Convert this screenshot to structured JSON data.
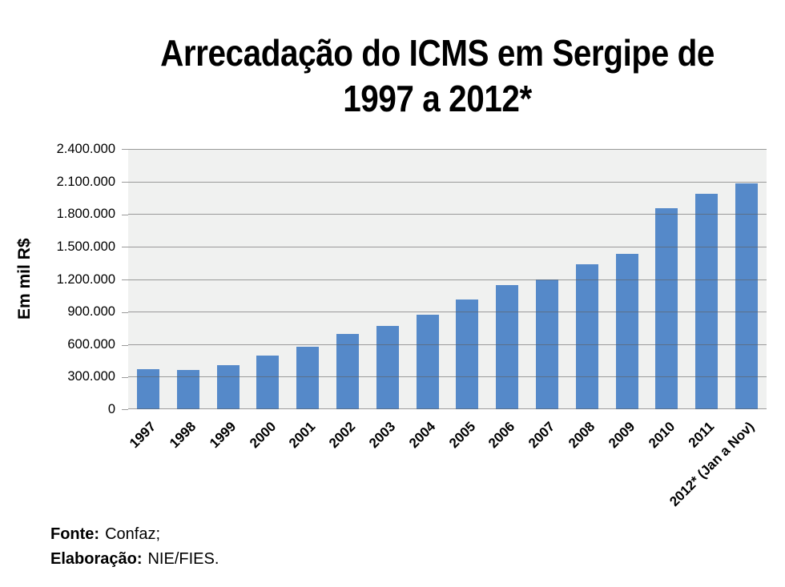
{
  "title": {
    "line1": "Arrecadação do ICMS em Sergipe de",
    "line2": "1997 a 2012*"
  },
  "footer": {
    "source_label": "Fonte:",
    "source_value": "Confaz;",
    "elaboration_label": "Elaboração:",
    "elaboration_value": "NIE/FIES."
  },
  "chart_data": {
    "type": "bar",
    "title": "Arrecadação do ICMS em Sergipe de 1997 a 2012*",
    "xlabel": "",
    "ylabel": "Em mil R$",
    "categories": [
      "1997",
      "1998",
      "1999",
      "2000",
      "2001",
      "2002",
      "2003",
      "2004",
      "2005",
      "2006",
      "2007",
      "2008",
      "2009",
      "2010",
      "2011",
      "2012* (Jan a Nov)"
    ],
    "values": [
      370000,
      365000,
      405000,
      495000,
      575000,
      695000,
      770000,
      875000,
      1015000,
      1145000,
      1200000,
      1335000,
      1430000,
      1850000,
      1990000,
      2080000
    ],
    "ylim": [
      0,
      2400000
    ],
    "ytick_step": 300000,
    "ytick_labels": [
      "0",
      "300.000",
      "600.000",
      "900.000",
      "1.200.000",
      "1.500.000",
      "1.800.000",
      "2.100.000",
      "2.400.000"
    ],
    "grid": true,
    "legend": false,
    "bar_color": "#5589C9",
    "gridline_color": "#A6A6A6",
    "plot_background": "#F0F1F0"
  }
}
